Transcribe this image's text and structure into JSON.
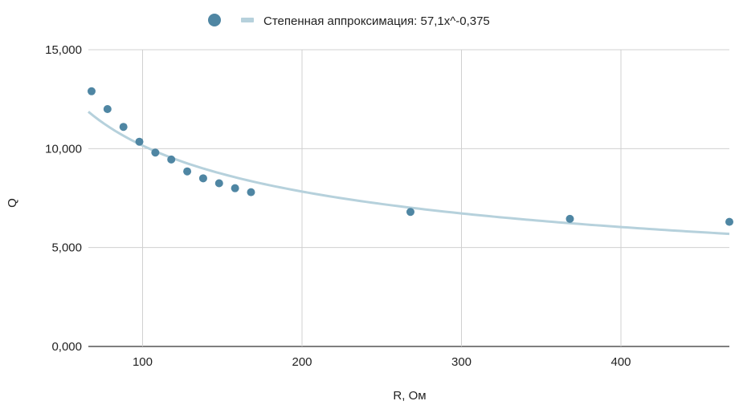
{
  "chart_data": {
    "type": "scatter",
    "xlabel": "R, Ом",
    "ylabel": "Q",
    "xlim": [
      66,
      468
    ],
    "ylim": [
      0,
      15
    ],
    "x_ticks": [
      100,
      200,
      300,
      400
    ],
    "x_tick_labels": [
      "100",
      "200",
      "300",
      "400"
    ],
    "y_ticks": [
      0,
      5,
      10,
      15
    ],
    "y_tick_labels": [
      "0,000",
      "5,000",
      "10,000",
      "15,000"
    ],
    "grid": true,
    "legend_position": "top",
    "series": [
      {
        "kind": "scatter",
        "color": "#4f86a3",
        "x": [
          68,
          78,
          88,
          98,
          108,
          118,
          128,
          138,
          148,
          158,
          168,
          268,
          368,
          468
        ],
        "y": [
          12.9,
          12.0,
          11.1,
          10.35,
          9.8,
          9.45,
          8.85,
          8.5,
          8.25,
          8.0,
          7.8,
          6.8,
          6.45,
          6.3
        ]
      },
      {
        "kind": "trendline",
        "name": "Степенная аппроксимация: 57,1x^-0,375",
        "color": "#b6d1dc",
        "coef": 57.1,
        "exponent": -0.375,
        "x_start": 66,
        "x_end": 468
      }
    ]
  }
}
